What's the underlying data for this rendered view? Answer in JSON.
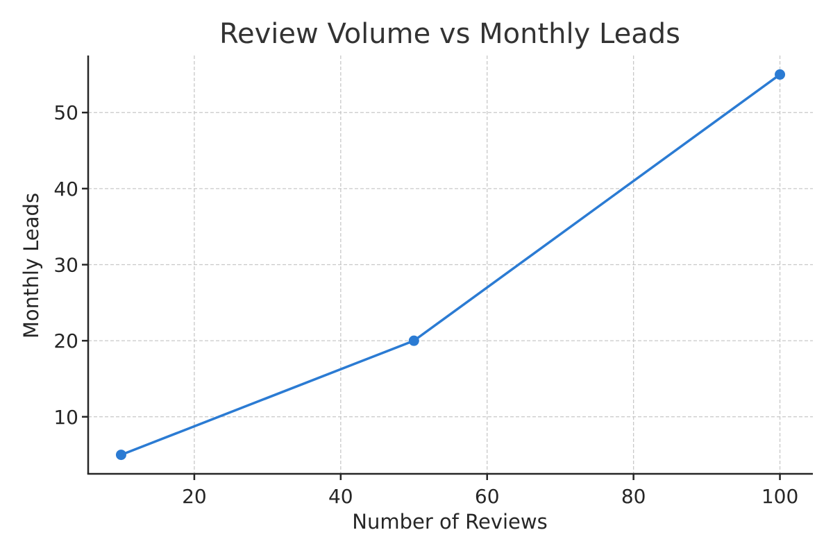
{
  "chart_data": {
    "type": "line",
    "title": "Review Volume vs Monthly Leads",
    "xlabel": "Number of Reviews",
    "ylabel": "Monthly Leads",
    "x": [
      10,
      50,
      100
    ],
    "series": [
      {
        "name": "Monthly Leads",
        "values": [
          5,
          20,
          55
        ],
        "color": "#2b7bd3",
        "marker": "circle"
      }
    ],
    "xticks": [
      20,
      40,
      60,
      80,
      100
    ],
    "yticks": [
      10,
      20,
      30,
      40,
      50
    ],
    "xlim": [
      5.5,
      104.5
    ],
    "ylim": [
      2.5,
      57.5
    ],
    "grid": true,
    "legend": null
  },
  "colors": {
    "line": "#2b7bd3",
    "grid": "#c8c8c8",
    "axis": "#262626",
    "title": "#333333"
  }
}
